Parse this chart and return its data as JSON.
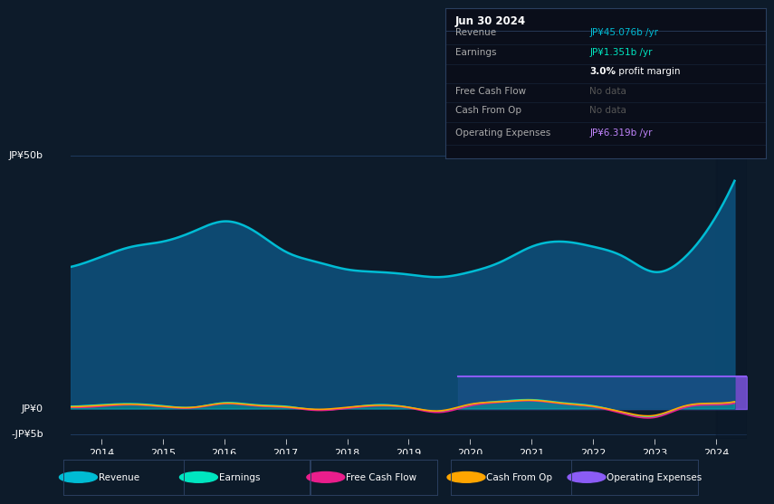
{
  "bg_color": "#0d1b2a",
  "plot_bg_color": "#0d1b2a",
  "title": "Jun 30 2024",
  "table_data": {
    "Revenue": {
      "value": "JP¥45.076b /yr",
      "color": "#00d4e8"
    },
    "Earnings": {
      "value": "JP¥1.351b /yr",
      "color": "#00e5c0"
    },
    "profit_margin": "3.0% profit margin",
    "Free Cash Flow": {
      "value": "No data",
      "color": "#666666"
    },
    "Cash From Op": {
      "value": "No data",
      "color": "#666666"
    },
    "Operating Expenses": {
      "value": "JP¥6.319b /yr",
      "color": "#c084fc"
    }
  },
  "ylabel_top": "JP¥50b",
  "ylabel_zero": "JP¥0",
  "ylabel_neg": "-JP¥5b",
  "x_years": [
    2013.5,
    2014,
    2014.5,
    2015,
    2015.5,
    2016,
    2016.5,
    2017,
    2017.5,
    2018,
    2018.5,
    2019,
    2019.5,
    2020,
    2020.5,
    2021,
    2021.5,
    2022,
    2022.5,
    2023,
    2023.5,
    2024,
    2024.3
  ],
  "revenue": [
    28,
    30,
    32,
    33,
    35,
    37,
    35,
    31,
    29,
    27.5,
    27,
    26.5,
    26,
    27,
    29,
    32,
    33,
    32,
    30,
    27,
    30,
    38,
    45
  ],
  "earnings": [
    0.5,
    0.8,
    1.0,
    0.6,
    0.3,
    1.2,
    0.8,
    0.5,
    -0.2,
    0.2,
    0.8,
    0.3,
    -0.5,
    0.8,
    1.5,
    1.8,
    1.2,
    0.6,
    -0.8,
    -1.5,
    0.5,
    1.0,
    1.35
  ],
  "free_cash_flow": [
    0.3,
    0.5,
    0.8,
    0.4,
    0.2,
    1.0,
    0.6,
    0.3,
    -0.3,
    0.1,
    0.6,
    0.2,
    -0.7,
    0.6,
    1.3,
    1.6,
    1.0,
    0.4,
    -1.0,
    -1.7,
    0.3,
    0.8,
    1.1
  ],
  "cash_from_op": [
    0.4,
    0.7,
    0.9,
    0.5,
    0.3,
    1.1,
    0.7,
    0.4,
    -0.1,
    0.3,
    0.7,
    0.3,
    -0.4,
    0.9,
    1.4,
    1.7,
    1.1,
    0.5,
    -0.7,
    -1.3,
    0.6,
    1.1,
    1.4
  ],
  "op_expenses_start_x": 2019.8,
  "op_expenses_value": 6.319,
  "revenue_color": "#00bcd4",
  "earnings_color": "#00e5c0",
  "free_cash_flow_color": "#e91e8c",
  "cash_from_op_color": "#ffa500",
  "op_expenses_color": "#8b5cf6",
  "grid_color": "#1e3a5f",
  "legend_border_color": "#2a3f5f",
  "shade_x_start": 2024.0,
  "xlim": [
    2013.5,
    2024.5
  ],
  "ylim": [
    -6,
    52
  ]
}
